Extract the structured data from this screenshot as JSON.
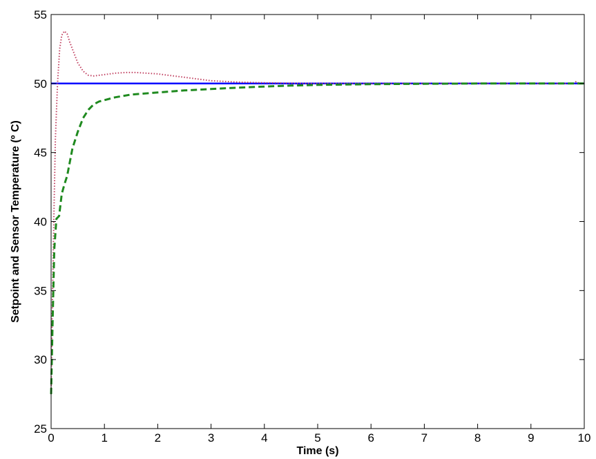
{
  "chart_data": {
    "type": "line",
    "title": "",
    "xlabel": "Time (s)",
    "ylabel": "Setpoint and Sensor Temperature (º C)",
    "xlim": [
      0,
      10
    ],
    "ylim": [
      25,
      55
    ],
    "x_ticks": [
      0,
      1,
      2,
      3,
      4,
      5,
      6,
      7,
      8,
      9,
      10
    ],
    "y_ticks": [
      25,
      30,
      35,
      40,
      45,
      50,
      55
    ],
    "grid": false,
    "legend": "none",
    "series": [
      {
        "style": "solid",
        "color": "#0000ff",
        "x": [
          0,
          10
        ],
        "y": [
          50,
          50
        ]
      },
      {
        "style": "dotted",
        "color": "#c04060",
        "x": [
          0,
          0.02,
          0.05,
          0.08,
          0.12,
          0.16,
          0.2,
          0.25,
          0.3,
          0.35,
          0.42,
          0.5,
          0.6,
          0.7,
          0.8,
          0.9,
          1.0,
          1.2,
          1.4,
          1.6,
          1.8,
          2.0,
          2.2,
          2.5,
          2.8,
          3.0,
          3.5,
          4.0,
          4.5,
          5.0,
          6.0,
          7.0,
          8.0,
          9.0,
          9.8,
          9.85,
          9.9,
          10.0
        ],
        "y": [
          27.5,
          33,
          40,
          46,
          50,
          52.5,
          53.5,
          53.8,
          53.6,
          53.0,
          52.3,
          51.5,
          50.9,
          50.6,
          50.55,
          50.6,
          50.65,
          50.75,
          50.8,
          50.8,
          50.75,
          50.7,
          50.6,
          50.45,
          50.3,
          50.2,
          50.1,
          50.05,
          50.02,
          50.0,
          50.0,
          50.0,
          50.0,
          50.0,
          50.0,
          50.15,
          50.0,
          50.0
        ]
      },
      {
        "style": "dashed",
        "color": "#1f8a1f",
        "x": [
          0,
          0.03,
          0.06,
          0.1,
          0.15,
          0.2,
          0.25,
          0.3,
          0.4,
          0.5,
          0.6,
          0.7,
          0.8,
          0.9,
          1.0,
          1.2,
          1.5,
          2.0,
          2.5,
          3.0,
          3.5,
          4.0,
          4.5,
          5.0,
          6.0,
          7.0,
          8.0,
          9.0,
          10.0
        ],
        "y": [
          27.5,
          33,
          38,
          40.2,
          40.4,
          42,
          42.7,
          43.3,
          45.3,
          46.5,
          47.5,
          48.1,
          48.5,
          48.7,
          48.8,
          49.0,
          49.2,
          49.35,
          49.5,
          49.6,
          49.7,
          49.78,
          49.85,
          49.9,
          49.95,
          49.98,
          50.0,
          50.0,
          50.0
        ]
      }
    ]
  }
}
